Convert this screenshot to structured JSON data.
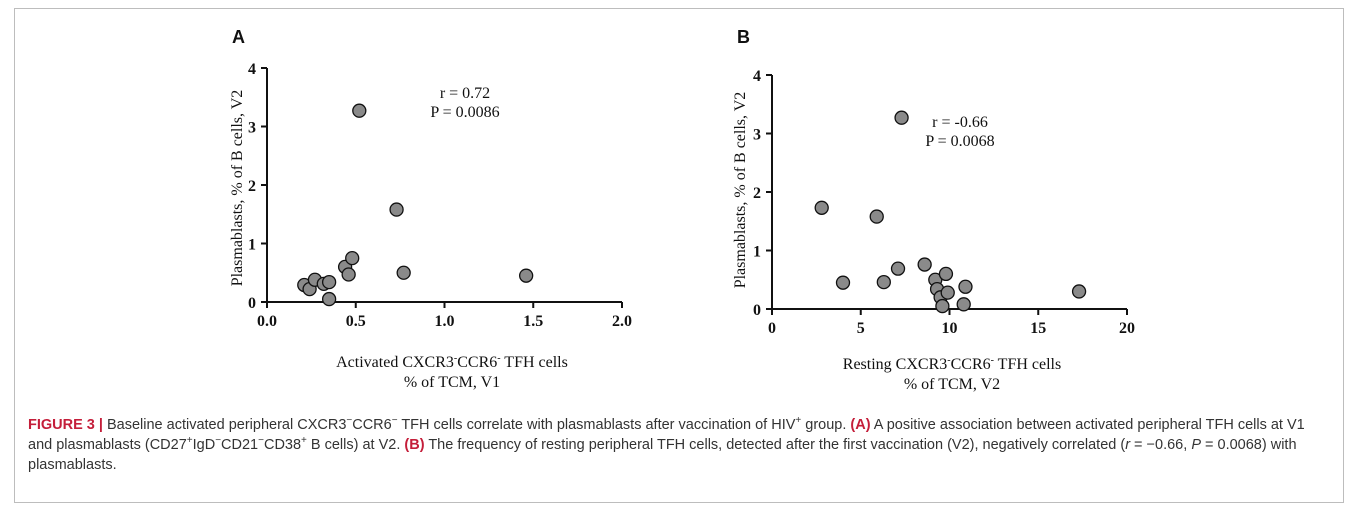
{
  "caption": {
    "label": "FIGURE 3 |",
    "seg1": "Baseline activated peripheral CXCR3",
    "seg1_sup": "−",
    "seg2": "CCR6",
    "seg2_sup": "−",
    "seg3": " TFH cells correlate with plasmablasts after vaccination of HIV",
    "seg3_sup": "+",
    "seg4": " group. ",
    "ref_a": "(A)",
    "seg5": " A positive association between activated peripheral TFH cells at V1 and plasmablasts (CD27",
    "seg5_sup": "+",
    "seg6": "IgD",
    "seg6_sup": "−",
    "seg7": "CD21",
    "seg7_sup": "−",
    "seg8": "CD38",
    "seg8_sup": "+",
    "seg9": " B cells) at V2. ",
    "ref_b": "(B)",
    "seg10": " The frequency of resting peripheral TFH cells, detected after the first vaccination (V2), negatively correlated (",
    "r_sym": "r",
    "seg11": " = −0.66, ",
    "p_sym": "P",
    "seg12": " = 0.0068) with plasmablasts."
  },
  "chart_data": [
    {
      "panel": "A",
      "type": "scatter",
      "xlabel_line1": "Activated CXCR3",
      "xlabel_sup1": "-",
      "xlabel_mid": "CCR6",
      "xlabel_sup2": "-",
      "xlabel_end": "  TFH cells",
      "xlabel_line2": "% of TCM, V1",
      "ylabel": "Plasmablasts, % of B cells, V2",
      "xlim": [
        0,
        2
      ],
      "ylim": [
        0,
        4
      ],
      "xticks": [
        "0.0",
        "0.5",
        "1.0",
        "1.5",
        "2.0"
      ],
      "yticks": [
        "0",
        "1",
        "2",
        "3",
        "4"
      ],
      "annotation_r": "r = 0.72",
      "annotation_p": "P = 0.0086",
      "point_color": "#8a8a8a",
      "points": [
        {
          "x": 0.21,
          "y": 0.29
        },
        {
          "x": 0.24,
          "y": 0.22
        },
        {
          "x": 0.27,
          "y": 0.38
        },
        {
          "x": 0.32,
          "y": 0.31
        },
        {
          "x": 0.35,
          "y": 0.34
        },
        {
          "x": 0.35,
          "y": 0.05
        },
        {
          "x": 0.44,
          "y": 0.6
        },
        {
          "x": 0.46,
          "y": 0.47
        },
        {
          "x": 0.48,
          "y": 0.75
        },
        {
          "x": 0.52,
          "y": 3.27
        },
        {
          "x": 0.73,
          "y": 1.58
        },
        {
          "x": 0.77,
          "y": 0.5
        },
        {
          "x": 1.46,
          "y": 0.45
        }
      ]
    },
    {
      "panel": "B",
      "type": "scatter",
      "xlabel_line1": "Resting CXCR3",
      "xlabel_sup1": "-",
      "xlabel_mid": "CCR6",
      "xlabel_sup2": "-",
      "xlabel_end": "  TFH cells",
      "xlabel_line2": "% of TCM, V2",
      "ylabel": "Plasmablasts, % of B cells, V2",
      "xlim": [
        0,
        20
      ],
      "ylim": [
        0,
        4
      ],
      "xticks": [
        "0",
        "5",
        "10",
        "15",
        "20"
      ],
      "yticks": [
        "0",
        "1",
        "2",
        "3",
        "4"
      ],
      "annotation_r": "r = -0.66",
      "annotation_p": "P = 0.0068",
      "point_color": "#8a8a8a",
      "points": [
        {
          "x": 2.8,
          "y": 1.73
        },
        {
          "x": 4.0,
          "y": 0.45
        },
        {
          "x": 5.9,
          "y": 1.58
        },
        {
          "x": 6.3,
          "y": 0.46
        },
        {
          "x": 7.1,
          "y": 0.69
        },
        {
          "x": 7.3,
          "y": 3.27
        },
        {
          "x": 8.6,
          "y": 0.76
        },
        {
          "x": 9.2,
          "y": 0.5
        },
        {
          "x": 9.3,
          "y": 0.34
        },
        {
          "x": 9.5,
          "y": 0.2
        },
        {
          "x": 9.6,
          "y": 0.05
        },
        {
          "x": 9.8,
          "y": 0.6
        },
        {
          "x": 9.9,
          "y": 0.28
        },
        {
          "x": 10.8,
          "y": 0.08
        },
        {
          "x": 10.9,
          "y": 0.38
        },
        {
          "x": 17.3,
          "y": 0.3
        }
      ]
    }
  ]
}
